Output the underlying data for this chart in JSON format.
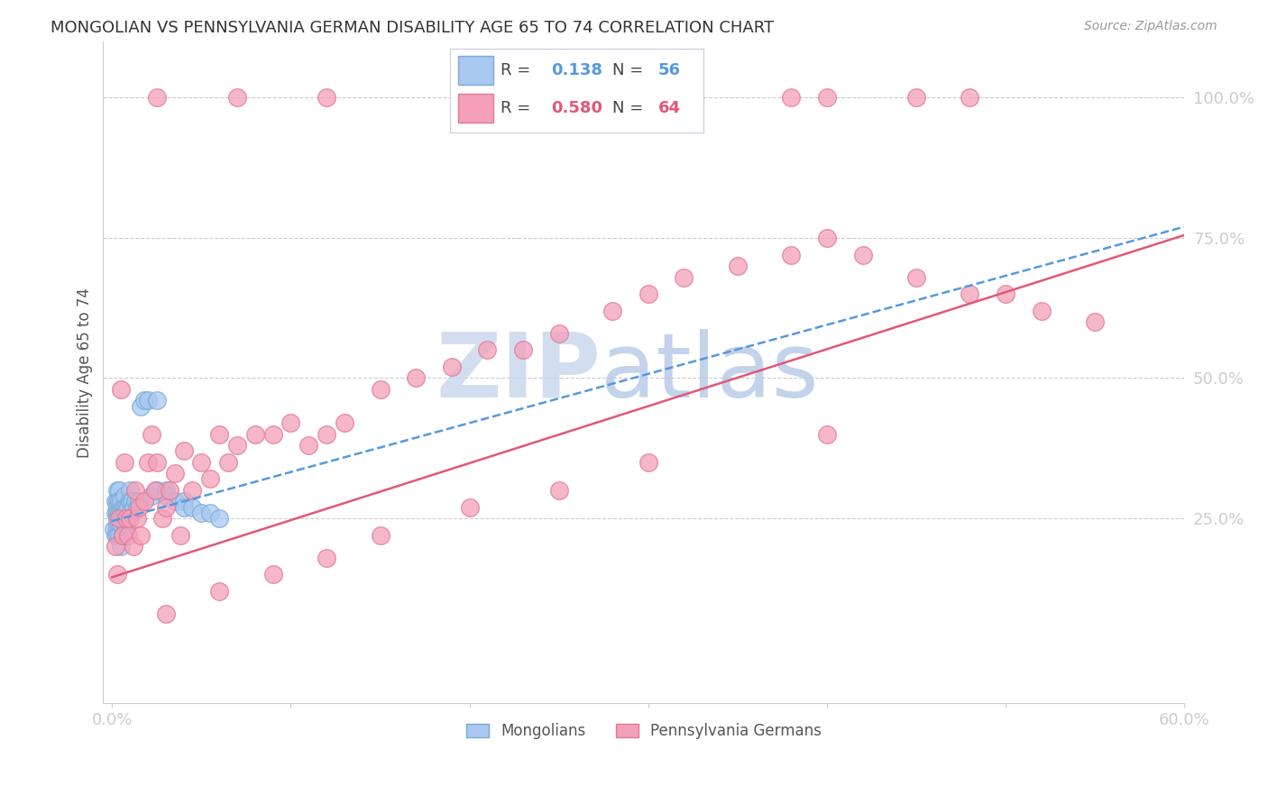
{
  "title": "MONGOLIAN VS PENNSYLVANIA GERMAN DISABILITY AGE 65 TO 74 CORRELATION CHART",
  "source": "Source: ZipAtlas.com",
  "ylabel": "Disability Age 65 to 74",
  "xlim": [
    -0.005,
    0.6
  ],
  "ylim": [
    -0.08,
    1.1
  ],
  "xticks": [
    0.0,
    0.1,
    0.2,
    0.3,
    0.4,
    0.5,
    0.6
  ],
  "xticklabels": [
    "0.0%",
    "",
    "",
    "",
    "",
    "",
    "60.0%"
  ],
  "yticks": [
    0.25,
    0.5,
    0.75,
    1.0
  ],
  "yticklabels": [
    "25.0%",
    "50.0%",
    "75.0%",
    "100.0%"
  ],
  "mongolian_R": 0.138,
  "mongolian_N": 56,
  "pennger_R": 0.58,
  "pennger_N": 64,
  "mongolian_color": "#a8c8f0",
  "mongolian_edge_color": "#7aaad8",
  "pennger_color": "#f4a0b8",
  "pennger_edge_color": "#e07898",
  "mongolian_line_color": "#5599dd",
  "pennger_line_color": "#e05878",
  "watermark_color": "#d0dff0",
  "background_color": "#ffffff",
  "grid_color": "#cccccc",
  "tick_label_color": "#5588bb",
  "mongolian_x": [
    0.001,
    0.002,
    0.002,
    0.002,
    0.003,
    0.003,
    0.003,
    0.003,
    0.003,
    0.003,
    0.003,
    0.003,
    0.004,
    0.004,
    0.004,
    0.004,
    0.004,
    0.005,
    0.005,
    0.005,
    0.005,
    0.006,
    0.006,
    0.006,
    0.007,
    0.007,
    0.007,
    0.007,
    0.008,
    0.008,
    0.008,
    0.009,
    0.009,
    0.01,
    0.01,
    0.01,
    0.011,
    0.012,
    0.013,
    0.014,
    0.015,
    0.016,
    0.018,
    0.02,
    0.022,
    0.025,
    0.025,
    0.03,
    0.03,
    0.035,
    0.04,
    0.04,
    0.045,
    0.05,
    0.055,
    0.06
  ],
  "mongolian_y": [
    0.23,
    0.26,
    0.28,
    0.22,
    0.3,
    0.28,
    0.27,
    0.26,
    0.25,
    0.24,
    0.23,
    0.22,
    0.3,
    0.28,
    0.26,
    0.24,
    0.22,
    0.28,
    0.26,
    0.24,
    0.2,
    0.27,
    0.25,
    0.22,
    0.29,
    0.27,
    0.26,
    0.24,
    0.27,
    0.25,
    0.23,
    0.27,
    0.25,
    0.3,
    0.28,
    0.26,
    0.28,
    0.27,
    0.28,
    0.27,
    0.28,
    0.45,
    0.46,
    0.46,
    0.29,
    0.46,
    0.3,
    0.3,
    0.29,
    0.28,
    0.28,
    0.27,
    0.27,
    0.26,
    0.26,
    0.25
  ],
  "pennger_x": [
    0.002,
    0.003,
    0.004,
    0.005,
    0.006,
    0.007,
    0.008,
    0.009,
    0.01,
    0.012,
    0.013,
    0.014,
    0.015,
    0.016,
    0.018,
    0.02,
    0.022,
    0.024,
    0.025,
    0.028,
    0.03,
    0.032,
    0.035,
    0.038,
    0.04,
    0.045,
    0.05,
    0.055,
    0.06,
    0.065,
    0.07,
    0.08,
    0.09,
    0.1,
    0.11,
    0.12,
    0.13,
    0.15,
    0.17,
    0.19,
    0.21,
    0.23,
    0.25,
    0.28,
    0.3,
    0.32,
    0.35,
    0.38,
    0.4,
    0.42,
    0.45,
    0.48,
    0.5,
    0.52,
    0.55,
    0.03,
    0.06,
    0.09,
    0.12,
    0.15,
    0.2,
    0.25,
    0.3,
    0.4
  ],
  "pennger_y": [
    0.2,
    0.15,
    0.25,
    0.48,
    0.22,
    0.35,
    0.25,
    0.22,
    0.25,
    0.2,
    0.3,
    0.25,
    0.27,
    0.22,
    0.28,
    0.35,
    0.4,
    0.3,
    0.35,
    0.25,
    0.27,
    0.3,
    0.33,
    0.22,
    0.37,
    0.3,
    0.35,
    0.32,
    0.4,
    0.35,
    0.38,
    0.4,
    0.4,
    0.42,
    0.38,
    0.4,
    0.42,
    0.48,
    0.5,
    0.52,
    0.55,
    0.55,
    0.58,
    0.62,
    0.65,
    0.68,
    0.7,
    0.72,
    0.75,
    0.72,
    0.68,
    0.65,
    0.65,
    0.62,
    0.6,
    0.08,
    0.12,
    0.15,
    0.18,
    0.22,
    0.27,
    0.3,
    0.35,
    0.4
  ],
  "pennger_outlier_x": [
    0.025,
    0.07,
    0.12,
    0.2,
    0.3,
    0.32,
    0.38,
    0.4,
    0.45,
    0.48
  ],
  "pennger_outlier_y": [
    1.0,
    1.0,
    1.0,
    1.0,
    1.0,
    1.0,
    1.0,
    1.0,
    1.0,
    1.0
  ],
  "mong_trend_x0": 0.0,
  "mong_trend_y0": 0.245,
  "mong_trend_x1": 0.6,
  "mong_trend_y1": 0.77,
  "penn_trend_x0": 0.0,
  "penn_trend_y0": 0.145,
  "penn_trend_x1": 0.6,
  "penn_trend_y1": 0.755
}
